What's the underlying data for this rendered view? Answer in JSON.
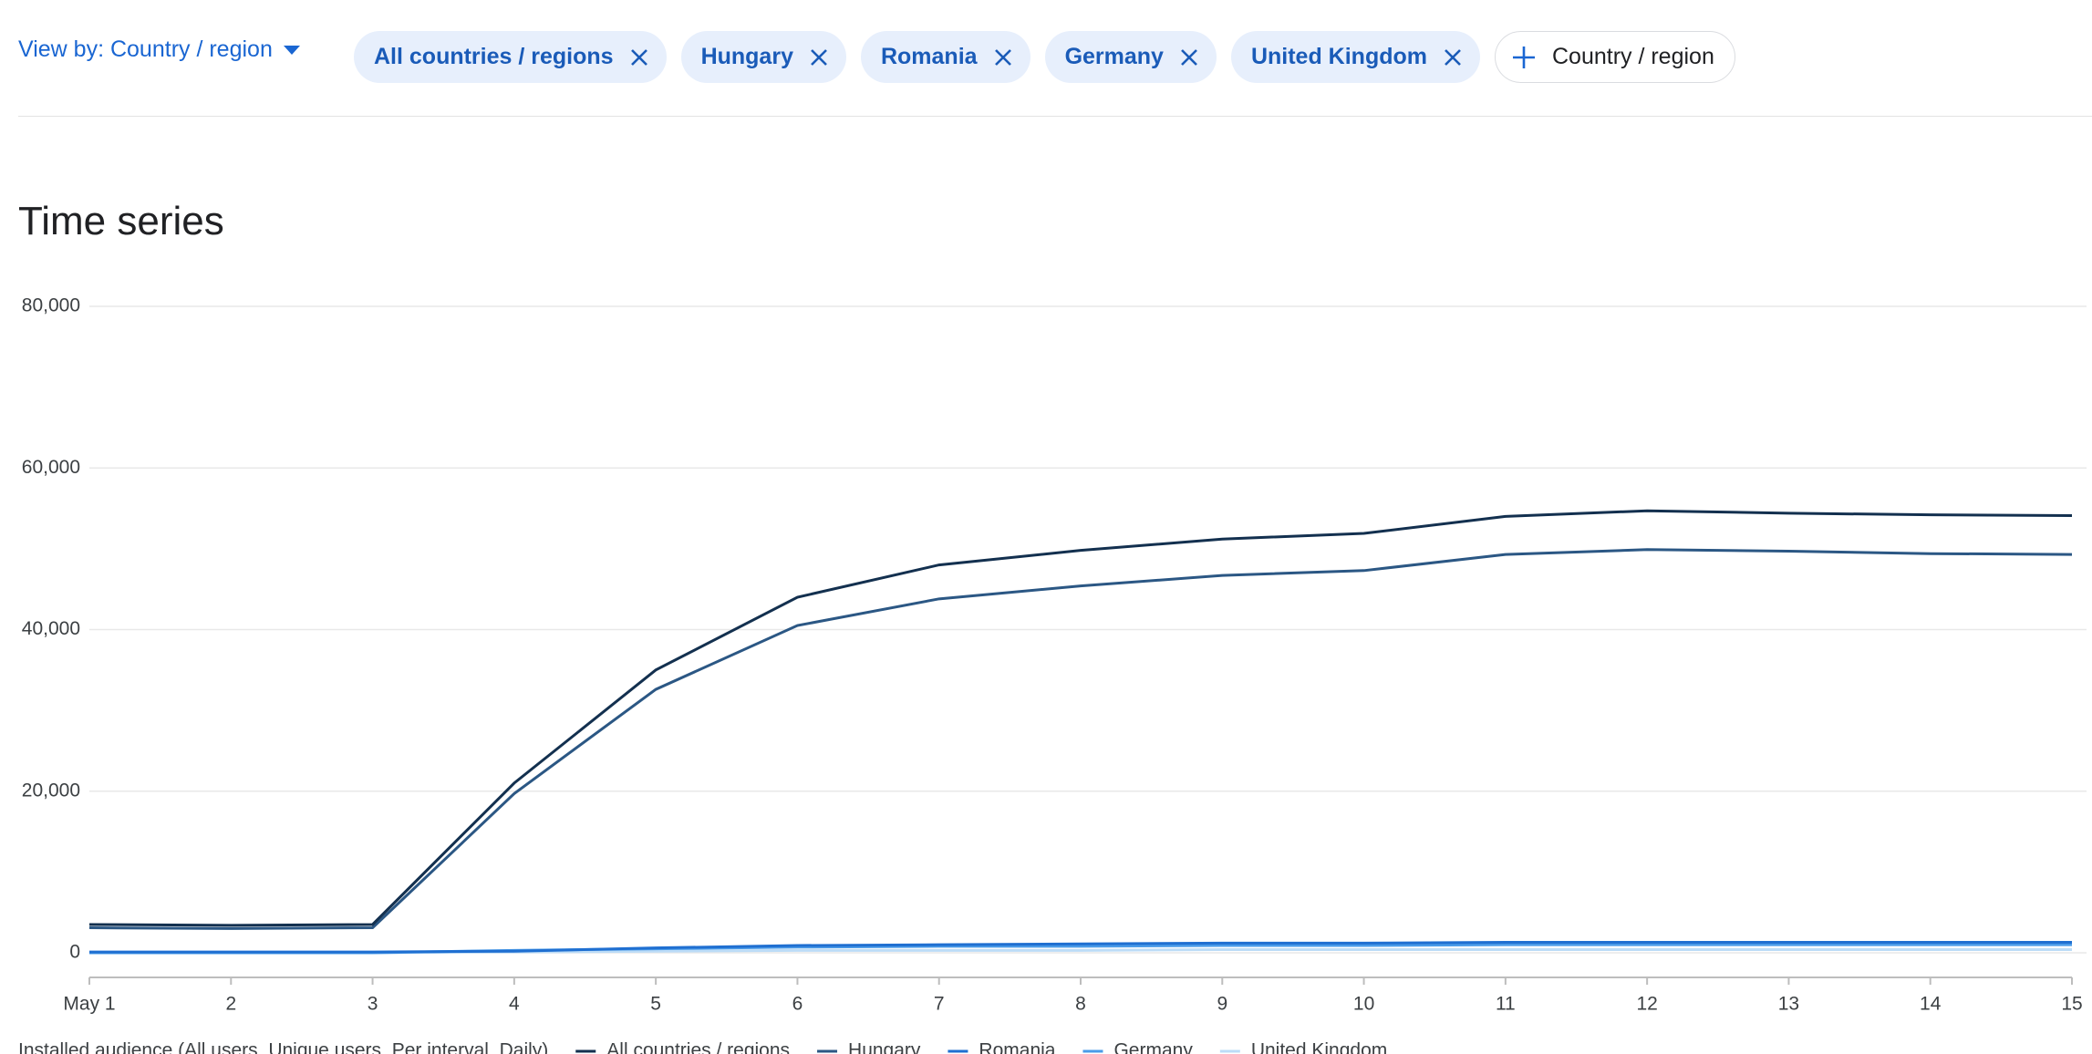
{
  "toolbar": {
    "view_by": "View by: Country / region",
    "chips": [
      "All countries / regions",
      "Hungary",
      "Romania",
      "Germany",
      "United Kingdom"
    ],
    "add_label": "Country / region"
  },
  "section_title": "Time series",
  "chart_data": {
    "type": "line",
    "legend_title": "Installed audience (All users, Unique users, Per interval, Daily)",
    "categories": [
      "May 1",
      "2",
      "3",
      "4",
      "5",
      "6",
      "7",
      "8",
      "9",
      "10",
      "11",
      "12",
      "13",
      "14",
      "15"
    ],
    "series": [
      {
        "name": "All countries / regions",
        "color": "#13304f",
        "values": [
          3500,
          3400,
          3500,
          21000,
          35000,
          44000,
          48000,
          49800,
          51200,
          51900,
          54000,
          54700,
          54400,
          54200,
          54100
        ]
      },
      {
        "name": "Hungary",
        "color": "#2b5784",
        "values": [
          3100,
          3000,
          3100,
          19700,
          32600,
          40500,
          43800,
          45400,
          46700,
          47300,
          49300,
          49900,
          49700,
          49400,
          49300
        ]
      },
      {
        "name": "Romania",
        "color": "#1f6fd1",
        "values": [
          100,
          100,
          100,
          200,
          600,
          900,
          1000,
          1100,
          1200,
          1200,
          1300,
          1300,
          1300,
          1300,
          1300
        ]
      },
      {
        "name": "Germany",
        "color": "#4a9be8",
        "values": [
          0,
          0,
          0,
          300,
          500,
          700,
          800,
          800,
          900,
          900,
          1000,
          1000,
          1000,
          1000,
          1000
        ]
      },
      {
        "name": "United Kingdom",
        "color": "#bcdcf7",
        "values": [
          0,
          0,
          0,
          100,
          200,
          300,
          300,
          300,
          400,
          400,
          400,
          400,
          400,
          400,
          400
        ]
      }
    ],
    "ylim": [
      0,
      80000
    ],
    "yticks": [
      {
        "value": 0,
        "label": "0"
      },
      {
        "value": 20000,
        "label": "20,000"
      },
      {
        "value": 40000,
        "label": "40,000"
      },
      {
        "value": 60000,
        "label": "60,000"
      },
      {
        "value": 80000,
        "label": "80,000"
      }
    ],
    "grid": true
  }
}
